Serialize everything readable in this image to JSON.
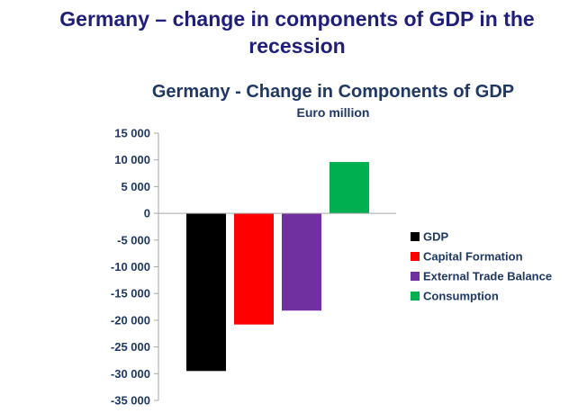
{
  "slide": {
    "title": "Germany – change in components of GDP in the recession"
  },
  "chart_data": {
    "type": "bar",
    "title": "Germany - Change in Components of GDP",
    "subtitle": "Euro million",
    "xlabel": "",
    "ylabel": "",
    "ylim": [
      -35000,
      15000
    ],
    "yticks": [
      15000,
      10000,
      5000,
      0,
      -5000,
      -10000,
      -15000,
      -20000,
      -25000,
      -30000,
      -35000
    ],
    "ytick_labels": [
      "15 000",
      "10 000",
      "5 000",
      "0",
      "-5 000",
      "-10 000",
      "-15 000",
      "-20 000",
      "-25 000",
      "-30 000",
      "-35 000"
    ],
    "grid": false,
    "legend_position": "right",
    "series": [
      {
        "name": "GDP",
        "value": -29500,
        "color": "#000000"
      },
      {
        "name": "Capital Formation",
        "value": -20800,
        "color": "#ff0000"
      },
      {
        "name": "External Trade Balance",
        "value": -18200,
        "color": "#7030a0"
      },
      {
        "name": "Consumption",
        "value": 9600,
        "color": "#00b050"
      }
    ]
  }
}
